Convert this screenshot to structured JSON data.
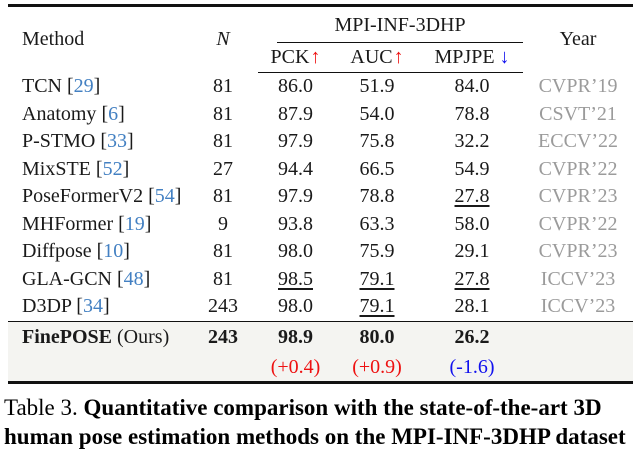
{
  "colors": {
    "cite_blue": "#4380c2",
    "year_gray": "#9b9b9b",
    "metric_up_red": "#ee1111",
    "metric_down_blue": "#1111ee",
    "ours_row_bg": "#f4f4f1",
    "rule_black": "#111111"
  },
  "punct": {
    "open": " [",
    "close": "]"
  },
  "header": {
    "method": "Method",
    "n": "N",
    "group": "MPI-INF-3DHP",
    "metrics": [
      {
        "label": "PCK",
        "arrow": "↑"
      },
      {
        "label": "AUC",
        "arrow": "↑"
      },
      {
        "label": "MPJPE",
        "arrow": "↓"
      }
    ],
    "year": "Year"
  },
  "rows": [
    {
      "method": "TCN",
      "cite": "29",
      "n": "81",
      "pck": "86.0",
      "auc": "51.9",
      "mpjpe": "84.0",
      "year": "CVPR’19"
    },
    {
      "method": "Anatomy",
      "cite": "6",
      "n": "81",
      "pck": "87.9",
      "auc": "54.0",
      "mpjpe": "78.8",
      "year": "CSVT’21"
    },
    {
      "method": "P-STMO",
      "cite": "33",
      "n": "81",
      "pck": "97.9",
      "auc": "75.8",
      "mpjpe": "32.2",
      "year": "ECCV’22"
    },
    {
      "method": "MixSTE",
      "cite": "52",
      "n": "27",
      "pck": "94.4",
      "auc": "66.5",
      "mpjpe": "54.9",
      "year": "CVPR’22"
    },
    {
      "method": "PoseFormerV2",
      "cite": "54",
      "n": "81",
      "pck": "97.9",
      "auc": "78.8",
      "mpjpe": "27.8",
      "year": "CVPR’23"
    },
    {
      "method": "MHFormer",
      "cite": "19",
      "n": "9",
      "pck": "93.8",
      "auc": "63.3",
      "mpjpe": "58.0",
      "year": "CVPR’22"
    },
    {
      "method": "Diffpose",
      "cite": "10",
      "n": "81",
      "pck": "98.0",
      "auc": "75.9",
      "mpjpe": "29.1",
      "year": "CVPR’23"
    },
    {
      "method": "GLA-GCN",
      "cite": "48",
      "n": "81",
      "pck": "98.5",
      "auc": "79.1",
      "mpjpe": "27.8",
      "year": "ICCV’23"
    },
    {
      "method": "D3DP",
      "cite": "34",
      "n": "243",
      "pck": "98.0",
      "auc": "79.1",
      "mpjpe": "28.1",
      "year": "ICCV’23"
    }
  ],
  "ours": {
    "method": "FinePOSE",
    "suffix": " (Ours)",
    "n": "243",
    "pck": "98.9",
    "auc": "80.0",
    "mpjpe": "26.2",
    "delta_pck": "(+0.4)",
    "delta_auc": "(+0.9)",
    "delta_mpjpe": "(-1.6)"
  },
  "caption": {
    "prefix": "Table 3.",
    "bold_line1": "Quantitative comparison with the state-of-the-art 3D",
    "bold_line2": "human pose estimation methods on the MPI-INF-3DHP dataset"
  }
}
